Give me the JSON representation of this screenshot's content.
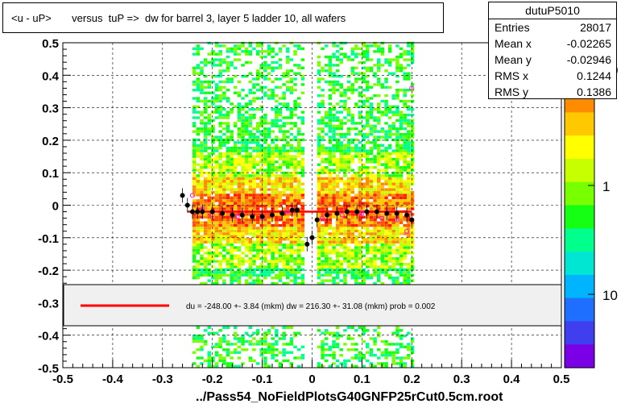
{
  "title": "<u - uP>       versus  tuP =>  dw for barrel 3, layer 5 ladder 10, all wafers",
  "footer": "../Pass54_NoFieldPlotsG40GNFP25rCut0.5cm.root",
  "stats": {
    "name": "dutuP5010",
    "rows": [
      {
        "label": "Entries",
        "value": "28017"
      },
      {
        "label": "Mean x",
        "value": "-0.02265"
      },
      {
        "label": "Mean y",
        "value": "-0.02946"
      },
      {
        "label": "RMS x",
        "value": "0.1244"
      },
      {
        "label": "RMS y",
        "value": "0.1386"
      }
    ]
  },
  "fit_legend": "du = -248.00 +-  3.84 (mkm) dw =  216.30 +- 31.08 (mkm) prob = 0.002",
  "colors": {
    "fit_line": "#ff0000",
    "profile": "#000000",
    "profile_alt": "#ff00ff"
  },
  "chart_data": {
    "type": "heatmap",
    "xlim": [
      -0.5,
      0.5
    ],
    "ylim": [
      -0.5,
      0.5
    ],
    "x_ticks": [
      "-0.5",
      "-0.4",
      "-0.3",
      "-0.2",
      "-0.1",
      "0",
      "0.1",
      "0.2",
      "0.3",
      "0.4",
      "0.5"
    ],
    "y_ticks": [
      "-0.5",
      "-0.4",
      "-0.3",
      "-0.2",
      "-0.1",
      "0",
      "0.1",
      "0.2",
      "0.3",
      "0.4",
      "0.5"
    ],
    "z_ticks": [
      "1",
      "10"
    ],
    "z_tick_partial": "0",
    "grid": true,
    "populated_x_ranges": [
      [
        -0.24,
        -0.02
      ],
      [
        0.01,
        0.2
      ]
    ],
    "fit_line": {
      "x": [
        -0.25,
        0.2
      ],
      "y": [
        -0.02,
        -0.02
      ]
    },
    "profile": {
      "x": [
        -0.26,
        -0.25,
        -0.24,
        -0.23,
        -0.22,
        -0.2,
        -0.18,
        -0.16,
        -0.14,
        -0.12,
        -0.1,
        -0.08,
        -0.06,
        -0.04,
        -0.03,
        -0.01,
        0.0,
        0.01,
        0.03,
        0.05,
        0.07,
        0.09,
        0.11,
        0.13,
        0.15,
        0.17,
        0.19,
        0.2
      ],
      "y": [
        0.03,
        0.0,
        -0.02,
        -0.02,
        -0.02,
        -0.02,
        -0.025,
        -0.03,
        -0.03,
        -0.035,
        -0.035,
        -0.03,
        -0.025,
        -0.015,
        -0.015,
        -0.12,
        -0.1,
        -0.045,
        -0.03,
        -0.025,
        -0.02,
        -0.02,
        -0.02,
        -0.02,
        -0.025,
        -0.025,
        -0.03,
        -0.045
      ]
    },
    "profile_alt": {
      "x": [
        -0.24,
        -0.22,
        -0.2,
        -0.15,
        -0.1,
        -0.05,
        0.02,
        0.06,
        0.1,
        0.14,
        0.17,
        0.19,
        0.2
      ],
      "y": [
        0.03,
        -0.01,
        -0.03,
        -0.035,
        -0.04,
        -0.02,
        -0.04,
        -0.03,
        -0.025,
        -0.04,
        -0.045,
        -0.08,
        0.36
      ]
    }
  }
}
